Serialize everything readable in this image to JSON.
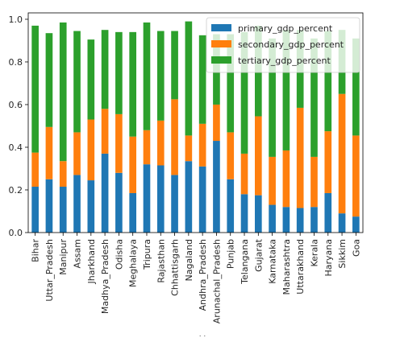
{
  "footer_text": ". .",
  "chart_data": {
    "type": "bar",
    "stacked": true,
    "title": "",
    "xlabel": "",
    "ylabel": "",
    "ylim": [
      0,
      1.03
    ],
    "yticks": [
      "0.0",
      "0.2",
      "0.4",
      "0.6",
      "0.8",
      "1.0"
    ],
    "grid": false,
    "legend_position": "top-right",
    "categories": [
      "Bihar",
      "Uttar_Pradesh",
      "Manipur",
      "Assam",
      "Jharkhand",
      "Madhya_Pradesh",
      "Odisha",
      "Meghalaya",
      "Tripura",
      "Rajasthan",
      "Chhattisgarh",
      "Nagaland",
      "Andhra_Pradesh",
      "Arunachal_Pradesh",
      "Punjab",
      "Telangana",
      "Gujarat",
      "Karnataka",
      "Maharashtra",
      "Uttarakhand",
      "Kerala",
      "Haryana",
      "Sikkim",
      "Goa"
    ],
    "series": [
      {
        "name": "primary_gdp_percent",
        "color": "#1f77b4",
        "values": [
          0.215,
          0.25,
          0.215,
          0.27,
          0.245,
          0.37,
          0.28,
          0.185,
          0.32,
          0.315,
          0.27,
          0.335,
          0.31,
          0.43,
          0.25,
          0.18,
          0.175,
          0.13,
          0.12,
          0.115,
          0.12,
          0.185,
          0.09,
          0.075
        ]
      },
      {
        "name": "secondary_gdp_percent",
        "color": "#ff7f0e",
        "values": [
          0.16,
          0.245,
          0.12,
          0.2,
          0.285,
          0.21,
          0.275,
          0.265,
          0.16,
          0.21,
          0.355,
          0.12,
          0.2,
          0.17,
          0.22,
          0.19,
          0.37,
          0.225,
          0.265,
          0.47,
          0.235,
          0.29,
          0.56,
          0.38
        ]
      },
      {
        "name": "tertiary_gdp_percent",
        "color": "#2ca02c",
        "values": [
          0.595,
          0.44,
          0.65,
          0.475,
          0.375,
          0.37,
          0.385,
          0.49,
          0.505,
          0.42,
          0.32,
          0.535,
          0.415,
          0.33,
          0.46,
          0.57,
          0.425,
          0.555,
          0.565,
          0.365,
          0.555,
          0.47,
          0.3,
          0.455
        ]
      }
    ]
  }
}
